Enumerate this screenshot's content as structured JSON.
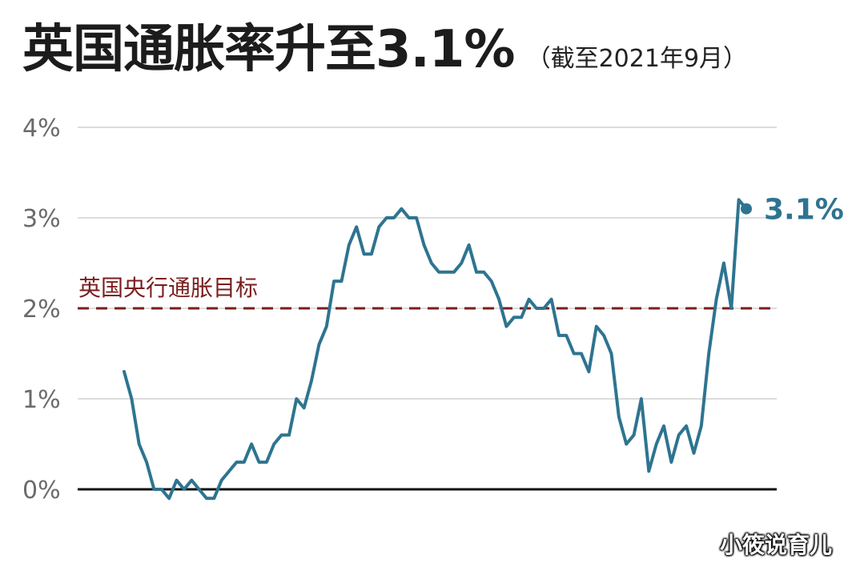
{
  "chart_data": {
    "type": "line",
    "title": "英国通胀率升至3.1%",
    "subtitle": "（截至2021年9月）",
    "ylim": [
      0,
      4
    ],
    "yticks": [
      "0%",
      "1%",
      "2%",
      "3%",
      "4%"
    ],
    "grid": true,
    "reference_line": {
      "label": "英国央行通胀目标",
      "value": 2,
      "color": "#7a1e1e"
    },
    "series": [
      {
        "color": "#2e7490",
        "values": [
          1.3,
          1.0,
          0.5,
          0.3,
          0.0,
          0.0,
          -0.1,
          0.1,
          0.0,
          0.1,
          0.0,
          -0.1,
          -0.1,
          0.1,
          0.2,
          0.3,
          0.3,
          0.5,
          0.3,
          0.3,
          0.5,
          0.6,
          0.6,
          1.0,
          0.9,
          1.2,
          1.6,
          1.8,
          2.3,
          2.3,
          2.7,
          2.9,
          2.6,
          2.6,
          2.9,
          3.0,
          3.0,
          3.1,
          3.0,
          3.0,
          2.7,
          2.5,
          2.4,
          2.4,
          2.4,
          2.5,
          2.7,
          2.4,
          2.4,
          2.3,
          2.1,
          1.8,
          1.9,
          1.9,
          2.1,
          2.0,
          2.0,
          2.1,
          1.7,
          1.7,
          1.5,
          1.5,
          1.3,
          1.8,
          1.7,
          1.5,
          0.8,
          0.5,
          0.6,
          1.0,
          0.2,
          0.5,
          0.7,
          0.3,
          0.6,
          0.7,
          0.4,
          0.7,
          1.5,
          2.1,
          2.5,
          2.0,
          3.2,
          3.1
        ]
      }
    ],
    "end_label": "3.1%"
  },
  "watermark": "小筱说育儿"
}
